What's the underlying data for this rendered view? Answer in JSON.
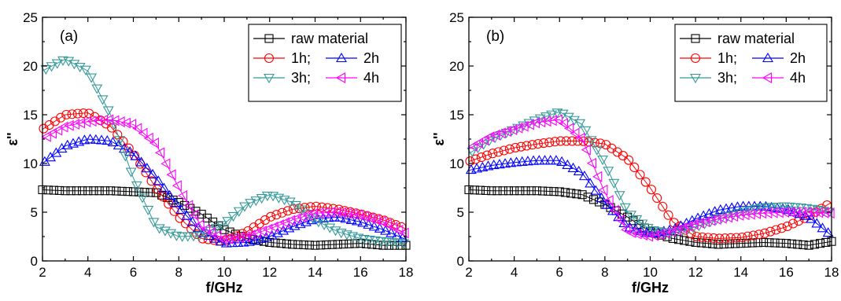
{
  "chart_data": [
    {
      "type": "line",
      "panel_label": "(a)",
      "xlabel": "f/GHz",
      "ylabel": "ε''",
      "xlim": [
        2,
        18
      ],
      "ylim": [
        0,
        25
      ],
      "x_ticks": [
        "2",
        "4",
        "6",
        "8",
        "10",
        "12",
        "14",
        "16",
        "18"
      ],
      "y_ticks": [
        "0",
        "5",
        "10",
        "15",
        "20",
        "25"
      ],
      "legend_position": "top-right",
      "series": [
        {
          "name": "raw material",
          "color": "#000000",
          "marker": "square",
          "x": [
            2,
            3,
            4,
            5,
            6,
            7,
            8,
            9,
            10,
            11,
            12,
            13,
            14,
            15,
            16,
            17,
            18
          ],
          "y": [
            7.3,
            7.2,
            7.2,
            7.2,
            7.1,
            7.0,
            6.0,
            4.8,
            3.2,
            2.3,
            1.9,
            1.7,
            1.6,
            1.7,
            1.8,
            1.6,
            1.6
          ]
        },
        {
          "name": "1h;",
          "color": "#ff0000",
          "marker": "circle",
          "x": [
            2,
            3,
            4,
            5,
            6,
            7,
            8,
            9,
            10,
            11,
            12,
            13,
            14,
            15,
            16,
            17,
            18
          ],
          "y": [
            13.5,
            15.0,
            15.2,
            13.8,
            11.0,
            7.5,
            4.5,
            2.3,
            2.0,
            3.0,
            4.5,
            5.3,
            5.6,
            5.3,
            4.8,
            4.2,
            3.3
          ]
        },
        {
          "name": "2h",
          "color": "#0000ff",
          "marker": "triangle-up",
          "x": [
            2,
            3,
            4,
            5,
            6,
            7,
            8,
            9,
            10,
            11,
            12,
            13,
            14,
            15,
            16,
            17,
            18
          ],
          "y": [
            10.0,
            11.8,
            12.5,
            12.3,
            11.0,
            8.5,
            5.5,
            3.0,
            1.8,
            1.9,
            2.5,
            3.5,
            4.3,
            4.5,
            4.0,
            3.2,
            2.2
          ]
        },
        {
          "name": "3h;",
          "color": "#339999",
          "marker": "triangle-down",
          "x": [
            2,
            3,
            4,
            5,
            6,
            7,
            8,
            9,
            10,
            11,
            12,
            13,
            14,
            15,
            16,
            17,
            18
          ],
          "y": [
            19.5,
            20.7,
            19.5,
            15.0,
            8.5,
            3.5,
            2.5,
            2.6,
            3.8,
            5.8,
            6.8,
            6.0,
            4.2,
            3.0,
            2.3,
            2.0,
            1.8
          ]
        },
        {
          "name": "4h",
          "color": "#ff00ff",
          "marker": "triangle-left",
          "x": [
            2,
            3,
            4,
            5,
            6,
            7,
            8,
            9,
            10,
            11,
            12,
            13,
            14,
            15,
            16,
            17,
            18
          ],
          "y": [
            12.5,
            13.8,
            14.3,
            14.5,
            14.0,
            12.0,
            7.5,
            3.5,
            2.2,
            2.5,
            3.3,
            4.2,
            4.9,
            5.0,
            4.7,
            4.0,
            2.8
          ]
        }
      ]
    },
    {
      "type": "line",
      "panel_label": "(b)",
      "xlabel": "f/GHz",
      "ylabel": "ε''",
      "xlim": [
        2,
        18
      ],
      "ylim": [
        0,
        25
      ],
      "x_ticks": [
        "2",
        "4",
        "6",
        "8",
        "10",
        "12",
        "14",
        "16",
        "18"
      ],
      "y_ticks": [
        "0",
        "5",
        "10",
        "15",
        "20",
        "25"
      ],
      "legend_position": "top-right",
      "series": [
        {
          "name": "raw material",
          "color": "#000000",
          "marker": "square",
          "x": [
            2,
            3,
            4,
            5,
            6,
            7,
            8,
            9,
            10,
            11,
            12,
            13,
            14,
            15,
            16,
            17,
            18
          ],
          "y": [
            7.3,
            7.2,
            7.2,
            7.2,
            7.1,
            6.8,
            5.8,
            4.5,
            3.0,
            2.3,
            1.9,
            1.7,
            1.8,
            1.9,
            1.8,
            1.6,
            2.0
          ]
        },
        {
          "name": "1h;",
          "color": "#ff0000",
          "marker": "circle",
          "x": [
            2,
            3,
            4,
            5,
            6,
            7,
            8,
            9,
            10,
            11,
            12,
            13,
            14,
            15,
            16,
            17,
            18
          ],
          "y": [
            10.2,
            11.0,
            11.6,
            12.0,
            12.3,
            12.3,
            12.0,
            10.5,
            7.5,
            4.0,
            2.5,
            2.3,
            2.4,
            2.8,
            3.5,
            4.6,
            6.0
          ]
        },
        {
          "name": "2h",
          "color": "#0000ff",
          "marker": "triangle-up",
          "x": [
            2,
            3,
            4,
            5,
            6,
            7,
            8,
            9,
            10,
            11,
            12,
            13,
            14,
            15,
            16,
            17,
            18
          ],
          "y": [
            9.3,
            9.8,
            10.1,
            10.3,
            10.3,
            9.0,
            6.0,
            3.5,
            2.8,
            3.2,
            4.3,
            5.2,
            5.6,
            5.6,
            5.3,
            4.5,
            2.6
          ]
        },
        {
          "name": "3h;",
          "color": "#339999",
          "marker": "triangle-down",
          "x": [
            2,
            3,
            4,
            5,
            6,
            7,
            8,
            9,
            10,
            11,
            12,
            13,
            14,
            15,
            16,
            17,
            18
          ],
          "y": [
            11.0,
            12.5,
            13.5,
            14.5,
            15.3,
            14.0,
            10.0,
            5.0,
            3.2,
            2.8,
            3.5,
            4.3,
            5.0,
            5.5,
            5.6,
            5.4,
            5.0
          ]
        },
        {
          "name": "4h",
          "color": "#ff00ff",
          "marker": "triangle-left",
          "x": [
            2,
            3,
            4,
            5,
            6,
            7,
            8,
            9,
            10,
            11,
            12,
            13,
            14,
            15,
            16,
            17,
            18
          ],
          "y": [
            11.5,
            12.8,
            13.5,
            14.2,
            14.5,
            12.5,
            7.0,
            3.0,
            2.5,
            3.0,
            3.8,
            4.3,
            4.7,
            4.9,
            5.0,
            5.0,
            4.9
          ]
        }
      ]
    }
  ]
}
